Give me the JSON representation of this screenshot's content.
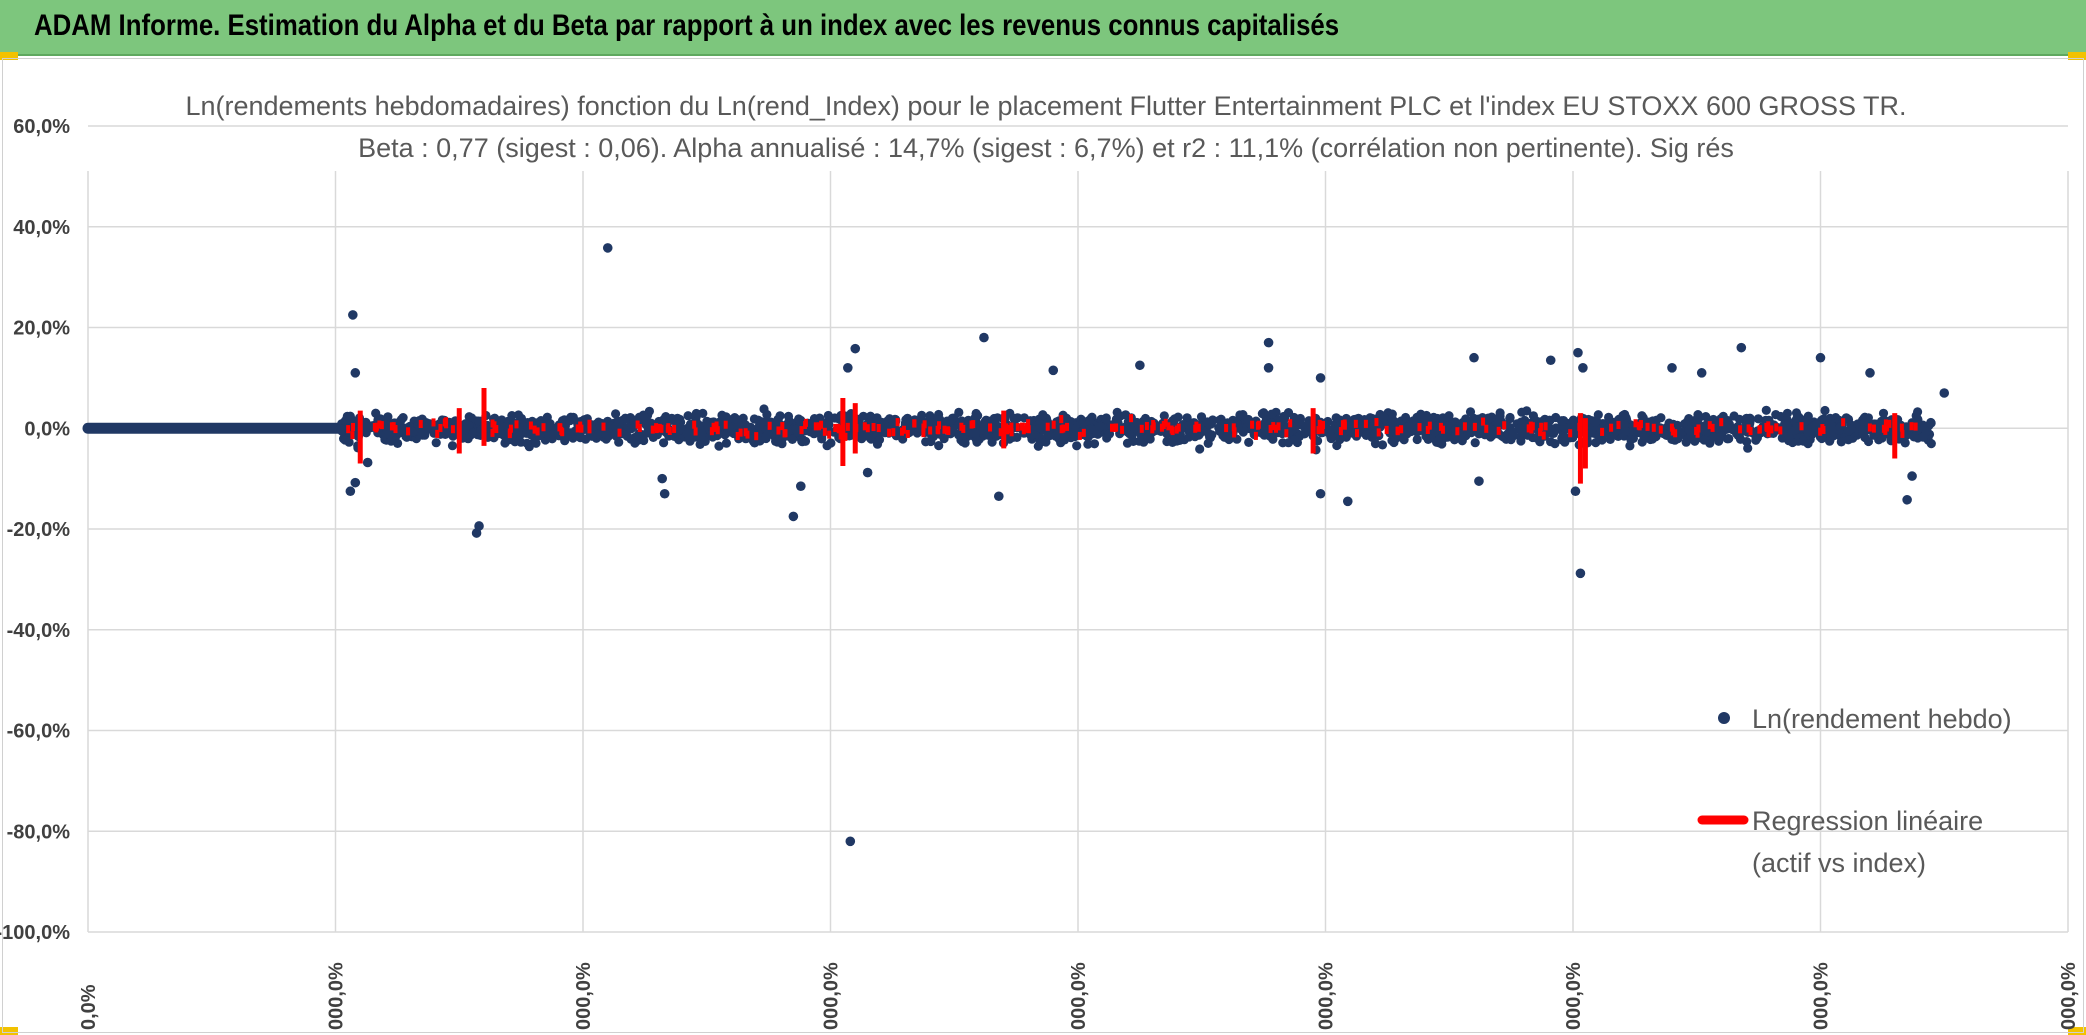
{
  "header": {
    "title": "ADAM Informe. Estimation du Alpha et du Beta par rapport à un index avec les revenus connus capitalisés"
  },
  "colors": {
    "banner": "#7dc67d",
    "points": "#203864",
    "regression": "#ff0000",
    "grid": "#d9d9d9"
  },
  "chart_data": {
    "type": "scatter",
    "title_line1": "Ln(rendements hebdomadaires) fonction du Ln(rend_Index) pour le placement Flutter Entertainment PLC et l'index EU STOXX 600 GROSS TR.",
    "title_line2": "Beta : 0,77 (sigest : 0,06). Alpha annualisé : 14,7% (sigest : 6,7%) et r2 : 11,1% (corrélation non pertinente). Sig rés",
    "ylim": [
      -100,
      60
    ],
    "yticks": [
      60,
      40,
      20,
      0,
      -20,
      -40,
      -60,
      -80,
      -100
    ],
    "ytick_labels": [
      "60,0%",
      "40,0%",
      "20,0%",
      "0,0%",
      "-20,0%",
      "-40,0%",
      "-60,0%",
      "-80,0%",
      "-100,0%"
    ],
    "xtick_labels": [
      "0,0%",
      "000,0%",
      "000,0%",
      "000,0%",
      "000,0%",
      "000,0%",
      "000,0%",
      "000,0%",
      "000,0%"
    ],
    "legend": [
      {
        "label": "Ln(rendement hebdo)",
        "kind": "marker"
      },
      {
        "label_line1": "Regression linéaire",
        "label_line2": "(actif vs index)",
        "kind": "line"
      }
    ],
    "series": [
      {
        "name": "Ln(rendement hebdo)",
        "points": [
          {
            "x": 1.07,
            "y": 22.5
          },
          {
            "x": 1.08,
            "y": 11.0
          },
          {
            "x": 1.06,
            "y": -12.5
          },
          {
            "x": 1.08,
            "y": -10.8
          },
          {
            "x": 1.13,
            "y": -6.8
          },
          {
            "x": 1.57,
            "y": -20.8
          },
          {
            "x": 1.58,
            "y": -19.4
          },
          {
            "x": 2.1,
            "y": 35.8
          },
          {
            "x": 2.32,
            "y": -10.0
          },
          {
            "x": 2.33,
            "y": -13.0
          },
          {
            "x": 2.85,
            "y": -17.5
          },
          {
            "x": 2.88,
            "y": -11.5
          },
          {
            "x": 3.07,
            "y": 12.0
          },
          {
            "x": 3.1,
            "y": 15.8
          },
          {
            "x": 3.15,
            "y": -8.8
          },
          {
            "x": 3.08,
            "y": -82.0
          },
          {
            "x": 3.62,
            "y": 18.0
          },
          {
            "x": 3.68,
            "y": -13.5
          },
          {
            "x": 3.9,
            "y": 11.5
          },
          {
            "x": 4.25,
            "y": 12.5
          },
          {
            "x": 4.77,
            "y": 17.0
          },
          {
            "x": 4.77,
            "y": 12.0
          },
          {
            "x": 4.98,
            "y": 10.0
          },
          {
            "x": 4.98,
            "y": -13.0
          },
          {
            "x": 5.09,
            "y": -14.5
          },
          {
            "x": 5.6,
            "y": 14.0
          },
          {
            "x": 5.62,
            "y": -10.5
          },
          {
            "x": 5.91,
            "y": 13.5
          },
          {
            "x": 6.02,
            "y": 15.0
          },
          {
            "x": 6.04,
            "y": 12.0
          },
          {
            "x": 6.01,
            "y": -12.5
          },
          {
            "x": 6.03,
            "y": -28.8
          },
          {
            "x": 6.4,
            "y": 12.0
          },
          {
            "x": 6.52,
            "y": 11.0
          },
          {
            "x": 6.68,
            "y": 16.0
          },
          {
            "x": 7.0,
            "y": 14.0
          },
          {
            "x": 7.2,
            "y": 11.0
          },
          {
            "x": 7.35,
            "y": -14.2
          },
          {
            "x": 7.5,
            "y": 7.0
          },
          {
            "x": 7.37,
            "y": -9.5
          }
        ]
      },
      {
        "name": "Regression linéaire",
        "segments": [
          {
            "x": 1.1,
            "y1": -7.0,
            "y2": 3.5
          },
          {
            "x": 1.5,
            "y1": -5.0,
            "y2": 4.0
          },
          {
            "x": 1.6,
            "y1": -3.5,
            "y2": 8.0
          },
          {
            "x": 3.05,
            "y1": -7.5,
            "y2": 6.0
          },
          {
            "x": 3.1,
            "y1": -5.0,
            "y2": 5.0
          },
          {
            "x": 3.7,
            "y1": -4.0,
            "y2": 3.5
          },
          {
            "x": 4.95,
            "y1": -5.0,
            "y2": 4.0
          },
          {
            "x": 6.03,
            "y1": -11.0,
            "y2": 3.0
          },
          {
            "x": 6.05,
            "y1": -8.0,
            "y2": 2.0
          },
          {
            "x": 7.3,
            "y1": -6.0,
            "y2": 3.0
          }
        ]
      }
    ],
    "xlim": [
      0,
      8
    ]
  }
}
